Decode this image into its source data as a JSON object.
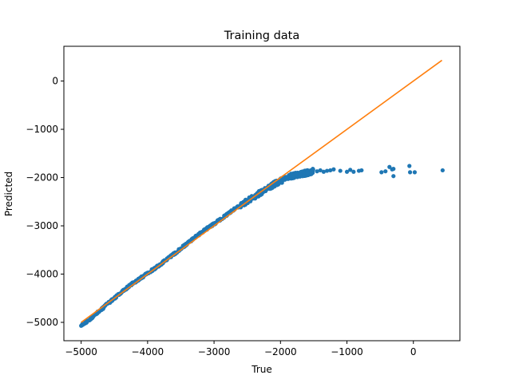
{
  "chart_data": {
    "type": "scatter",
    "title": "Training data",
    "xlabel": "True",
    "ylabel": "Predicted",
    "xlim": [
      -5260,
      700
    ],
    "ylim": [
      -5380,
      720
    ],
    "x_ticks": [
      -5000,
      -4000,
      -3000,
      -2000,
      -1000,
      0
    ],
    "y_ticks": [
      -5000,
      -4000,
      -3000,
      -2000,
      -1000,
      0
    ],
    "x_tick_labels": [
      "−5000",
      "−4000",
      "−3000",
      "−2000",
      "−1000",
      "0"
    ],
    "y_tick_labels": [
      "−5000",
      "−4000",
      "−3000",
      "−2000",
      "−1000",
      "0"
    ],
    "grid": false,
    "colors": {
      "scatter": "#1f77b4",
      "line": "#ff7f0e"
    },
    "line": {
      "x": [
        -5000,
        430
      ],
      "y": [
        -5000,
        430
      ]
    },
    "scatter_dense_path": [
      [
        -5000,
        -5070
      ],
      [
        -4900,
        -4970
      ],
      [
        -4800,
        -4850
      ],
      [
        -4700,
        -4740
      ],
      [
        -4600,
        -4610
      ],
      [
        -4500,
        -4500
      ],
      [
        -4400,
        -4390
      ],
      [
        -4300,
        -4270
      ],
      [
        -4200,
        -4170
      ],
      [
        -4100,
        -4080
      ],
      [
        -4000,
        -3980
      ],
      [
        -3900,
        -3890
      ],
      [
        -3800,
        -3790
      ],
      [
        -3700,
        -3680
      ],
      [
        -3600,
        -3580
      ],
      [
        -3500,
        -3470
      ],
      [
        -3400,
        -3360
      ],
      [
        -3300,
        -3250
      ],
      [
        -3200,
        -3150
      ],
      [
        -3100,
        -3050
      ],
      [
        -3000,
        -2960
      ],
      [
        -2900,
        -2860
      ],
      [
        -2800,
        -2760
      ],
      [
        -2700,
        -2660
      ],
      [
        -2600,
        -2570
      ],
      [
        -2500,
        -2480
      ],
      [
        -2400,
        -2400
      ],
      [
        -2300,
        -2310
      ],
      [
        -2200,
        -2240
      ],
      [
        -2100,
        -2140
      ],
      [
        -2000,
        -2070
      ],
      [
        -1900,
        -1990
      ],
      [
        -1800,
        -1960
      ],
      [
        -1700,
        -1930
      ],
      [
        -1600,
        -1900
      ],
      [
        -1500,
        -1860
      ]
    ],
    "scatter_outliers": [
      [
        -1450,
        -1870
      ],
      [
        -1400,
        -1850
      ],
      [
        -1350,
        -1880
      ],
      [
        -1300,
        -1860
      ],
      [
        -1250,
        -1850
      ],
      [
        -1200,
        -1830
      ],
      [
        -1100,
        -1860
      ],
      [
        -1000,
        -1880
      ],
      [
        -950,
        -1840
      ],
      [
        -900,
        -1880
      ],
      [
        -820,
        -1860
      ],
      [
        -780,
        -1850
      ],
      [
        -480,
        -1890
      ],
      [
        -420,
        -1870
      ],
      [
        -360,
        -1780
      ],
      [
        -320,
        -1830
      ],
      [
        -300,
        -1970
      ],
      [
        -300,
        -1820
      ],
      [
        -60,
        -1760
      ],
      [
        -50,
        -1890
      ],
      [
        20,
        -1890
      ],
      [
        440,
        -1850
      ]
    ]
  }
}
